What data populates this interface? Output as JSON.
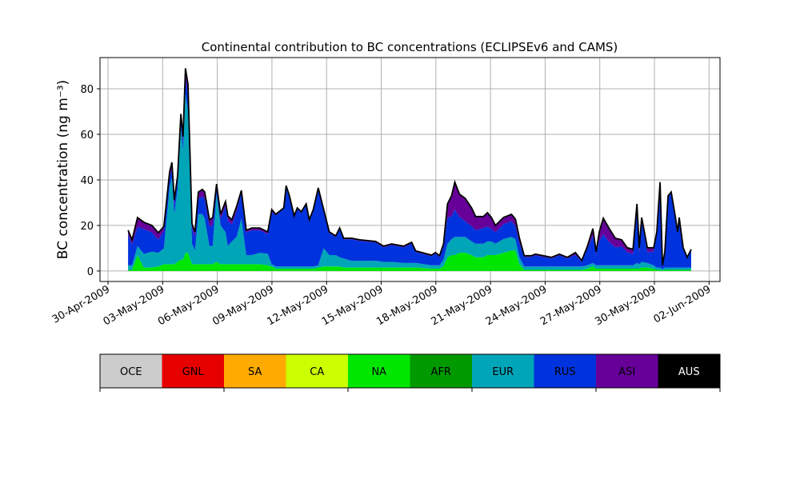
{
  "chart_data": {
    "type": "area",
    "stacked": true,
    "title": "Continental contribution to BC concentrations (ECLIPSEv6 and CAMS)",
    "xlabel": "",
    "ylabel": "BC concentration (ng m⁻³)",
    "x_units": "days since 30-Apr-2009",
    "xlim": [
      -0.44,
      33.6
    ],
    "ylim": [
      -4.6,
      93.7
    ],
    "grid": true,
    "y_ticks": [
      0,
      20,
      40,
      60,
      80
    ],
    "x_ticks": [
      0,
      3,
      6,
      9,
      12,
      15,
      18,
      21,
      24,
      27,
      30,
      33
    ],
    "x_tick_labels": [
      "30-Apr-2009",
      "03-May-2009",
      "06-May-2009",
      "09-May-2009",
      "12-May-2009",
      "15-May-2009",
      "18-May-2009",
      "21-May-2009",
      "24-May-2009",
      "27-May-2009",
      "30-May-2009",
      "02-Jun-2009"
    ],
    "x": [
      1.1,
      1.32,
      1.62,
      1.97,
      2.41,
      2.76,
      3.07,
      3.38,
      3.51,
      3.64,
      3.82,
      4.0,
      4.12,
      4.25,
      4.39,
      4.61,
      4.78,
      4.96,
      5.18,
      5.31,
      5.57,
      5.75,
      5.96,
      6.18,
      6.45,
      6.58,
      6.8,
      7.06,
      7.32,
      7.59,
      7.89,
      8.33,
      8.77,
      8.99,
      9.21,
      9.65,
      9.78,
      9.96,
      10.22,
      10.39,
      10.61,
      10.88,
      11.05,
      11.27,
      11.54,
      11.84,
      12.15,
      12.5,
      12.72,
      12.94,
      13.38,
      13.82,
      14.69,
      15.13,
      15.57,
      16.23,
      16.67,
      16.89,
      17.76,
      17.98,
      18.2,
      18.42,
      18.64,
      18.86,
      19.04,
      19.3,
      19.61,
      19.96,
      20.18,
      20.61,
      20.83,
      21.05,
      21.27,
      21.71,
      22.15,
      22.37,
      22.59,
      22.85,
      23.25,
      23.46,
      23.9,
      24.34,
      24.78,
      25.22,
      25.66,
      26.01,
      26.32,
      26.62,
      26.8,
      26.97,
      27.19,
      27.5,
      27.85,
      28.2,
      28.51,
      28.82,
      29.04,
      29.17,
      29.3,
      29.61,
      29.96,
      30.13,
      30.31,
      30.44,
      30.57,
      30.75,
      30.92,
      31.14,
      31.27,
      31.36,
      31.58,
      31.8,
      32.02
    ],
    "series": [
      {
        "name": "NA",
        "color": "#00e600",
        "values": [
          0.5,
          0.5,
          7,
          1.5,
          1.5,
          2,
          3,
          3,
          3,
          3,
          4,
          5,
          5,
          8,
          8,
          3,
          3,
          3,
          3,
          3,
          3,
          3,
          4,
          3,
          3,
          3,
          3,
          3,
          3,
          3,
          3,
          3,
          2.5,
          2,
          1,
          1,
          1,
          1,
          1,
          1,
          1,
          1,
          1,
          1,
          1.5,
          2,
          2,
          2,
          2,
          1.5,
          1.5,
          1.5,
          1.5,
          1.5,
          1.5,
          1.5,
          1.5,
          1.5,
          1,
          1,
          1,
          2,
          6,
          7,
          7,
          8,
          8,
          7,
          6,
          6,
          7,
          7,
          7,
          8,
          9,
          9,
          3,
          0.5,
          0.5,
          0.5,
          0.5,
          0.5,
          0.5,
          0.5,
          0.5,
          0.5,
          1,
          2,
          1,
          1,
          1,
          1,
          1,
          1,
          1,
          1,
          1,
          1,
          1.5,
          1.5,
          1,
          0.5,
          0.5,
          0.3,
          0.5,
          0.5,
          0.5,
          0.5,
          0.5,
          0.5,
          0.5,
          0.5,
          0.5
        ]
      },
      {
        "name": "EUR",
        "color": "#00a5b8",
        "values": [
          2,
          2,
          4,
          6,
          7,
          6,
          7,
          34,
          38,
          22,
          32,
          58,
          48,
          70,
          62,
          9,
          6,
          22,
          22,
          20,
          8,
          8,
          30,
          17,
          14,
          8,
          10,
          12,
          20,
          4,
          4,
          5,
          5,
          1,
          1,
          1,
          1,
          1,
          1,
          1,
          1,
          1,
          1,
          1,
          1,
          8,
          5,
          5,
          4,
          4,
          3,
          3,
          3,
          2.5,
          2.5,
          2,
          2,
          2,
          1.5,
          1.5,
          1.5,
          3,
          6,
          7,
          8,
          7,
          7,
          6,
          6,
          6,
          6,
          6,
          5,
          6,
          6,
          5,
          3,
          1.5,
          1.5,
          1.5,
          1.5,
          1.5,
          1.5,
          1.5,
          1.5,
          1.5,
          1.5,
          1.5,
          1.5,
          1.5,
          1.5,
          1.5,
          1.5,
          1.5,
          1.5,
          1.5,
          2.5,
          2,
          2.5,
          2,
          1.5,
          1,
          1,
          0.5,
          1,
          1,
          1,
          1,
          1,
          1,
          1,
          1,
          1
        ]
      },
      {
        "name": "RUS",
        "color": "#0033dd",
        "values": [
          13.4,
          9.2,
          8.5,
          10.9,
          8.5,
          5.8,
          7.6,
          4.5,
          3.7,
          4.2,
          3.8,
          4,
          4,
          7,
          7,
          6.7,
          6.2,
          6.7,
          7.8,
          8.7,
          8.5,
          9.5,
          2.2,
          2.9,
          11.5,
          11.2,
          7.5,
          11.4,
          11.4,
          9.9,
          10.9,
          9.9,
          8.7,
          23,
          22.4,
          25.2,
          34.5,
          30,
          21.7,
          25.2,
          23.5,
          27,
          20,
          24.5,
          33.5,
          16.5,
          9.7,
          7.9,
          12.4,
          8.4,
          9.4,
          8.7,
          8,
          6.4,
          7.4,
          6.9,
          8.6,
          4.8,
          4,
          5.1,
          3.7,
          5.9,
          11.5,
          10,
          12,
          8.7,
          6.9,
          6.7,
          5.9,
          6.9,
          6.6,
          5.5,
          5,
          6.5,
          6.9,
          5.8,
          6.4,
          4.2,
          4.2,
          4.9,
          4.2,
          3.5,
          4.9,
          3.5,
          5.1,
          2.1,
          7.4,
          12.1,
          4.9,
          10.7,
          13.7,
          10.4,
          7.9,
          8.2,
          5.7,
          5,
          25,
          5.2,
          18.5,
          4.7,
          6.2,
          15.2,
          37,
          1.5,
          6.6,
          31,
          32.7,
          22.2,
          15.2,
          21.5,
          8.2,
          4,
          7.5
        ]
      },
      {
        "name": "ASI",
        "color": "#660099",
        "values": [
          2,
          2,
          4,
          3,
          3,
          3,
          2,
          2,
          3,
          2,
          2,
          2,
          2,
          4,
          5,
          2,
          2,
          3,
          3,
          3,
          3,
          3,
          2,
          2,
          2,
          2,
          2,
          2,
          1,
          1,
          1,
          1,
          1,
          1,
          0.5,
          0.5,
          1,
          1,
          0.5,
          0.5,
          0.5,
          0.5,
          0.5,
          0.5,
          0.5,
          0.5,
          0.5,
          0.5,
          0.5,
          0.5,
          0.5,
          0.5,
          0.5,
          0.5,
          0.5,
          0.5,
          0.5,
          0.5,
          0.5,
          0.5,
          0.5,
          1,
          6,
          9,
          12,
          10,
          10,
          8,
          6,
          5,
          6,
          5,
          3,
          3,
          3,
          3,
          2,
          0.5,
          0.5,
          0.5,
          0.5,
          0.5,
          0.5,
          0.5,
          1,
          0.5,
          1,
          3,
          1,
          4,
          7,
          6,
          4,
          3,
          2,
          2,
          1,
          2,
          1,
          2,
          1.5,
          0.5,
          0.5,
          0.2,
          0.3,
          0.5,
          0.5,
          0.5,
          0.5,
          0.5,
          0.5,
          0.5,
          0.5
        ]
      }
    ],
    "total_line": {
      "name": "AUS",
      "color": "#000000"
    },
    "legend": {
      "placement": "bottom colorbar",
      "entries": [
        {
          "name": "OCE",
          "color": "#cccccc"
        },
        {
          "name": "GNL",
          "color": "#e60000"
        },
        {
          "name": "SA",
          "color": "#ffaa00"
        },
        {
          "name": "CA",
          "color": "#ccff00"
        },
        {
          "name": "NA",
          "color": "#00e600"
        },
        {
          "name": "AFR",
          "color": "#009900"
        },
        {
          "name": "EUR",
          "color": "#00a5b8"
        },
        {
          "name": "RUS",
          "color": "#0033dd"
        },
        {
          "name": "ASI",
          "color": "#660099"
        },
        {
          "name": "AUS",
          "color": "#000000"
        }
      ]
    }
  }
}
